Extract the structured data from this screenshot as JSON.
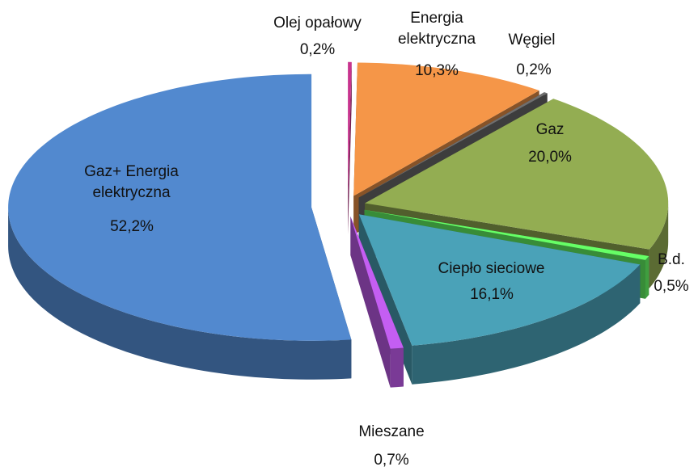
{
  "chart_data": {
    "type": "pie",
    "categories": [
      "Olej opałowy",
      "Energia elektryczna",
      "Węgiel",
      "Gaz",
      "B.d.",
      "Ciepło sieciowe",
      "Mieszane",
      "Gaz+ Energia elektryczna"
    ],
    "values": [
      0.2,
      10.3,
      0.2,
      20.0,
      0.5,
      16.1,
      0.7,
      52.2
    ],
    "value_labels": [
      "0,2%",
      "10,3%",
      "0,2%",
      "20,0%",
      "0,5%",
      "16,1%",
      "0,7%",
      "52,2%"
    ],
    "colors": [
      "#c8348e",
      "#f59648",
      "#6f6f6f",
      "#93ad52",
      "#66ff66",
      "#4aa2b8",
      "#c45ef2",
      "#5289cf"
    ]
  }
}
